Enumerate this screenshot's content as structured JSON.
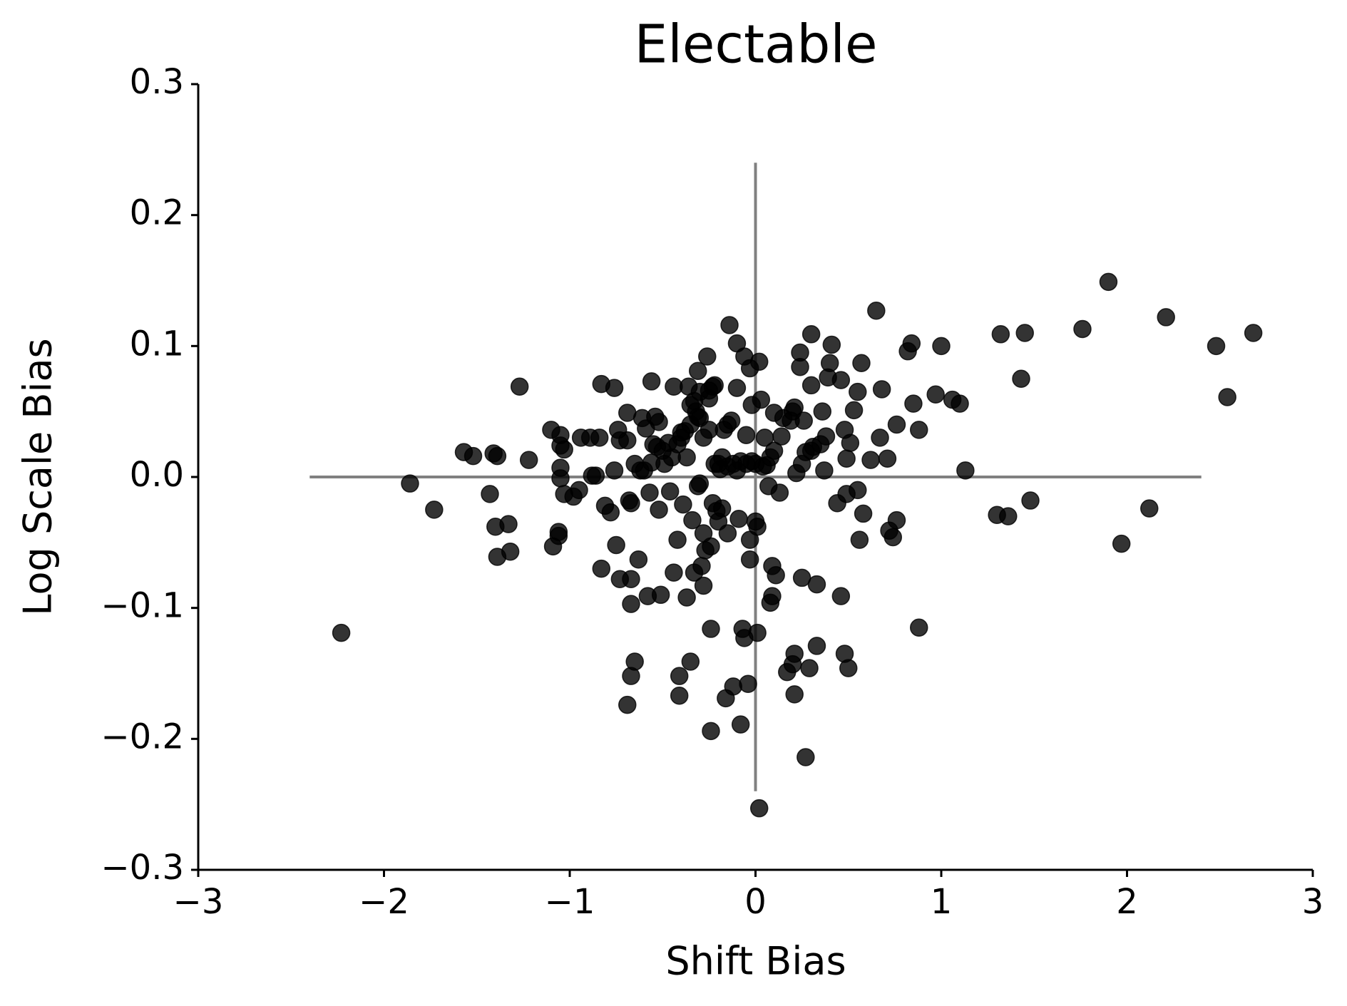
{
  "chart_data": {
    "type": "scatter",
    "title": "Electable",
    "x_label": "Shift Bias",
    "y_label": "Log Scale Bias",
    "color": "#000000",
    "opacity": 0.8,
    "xlim": [
      -3,
      3
    ],
    "ylim": [
      -0.3,
      0.3
    ],
    "xticks": [
      {
        "value": -3,
        "label": "−3"
      },
      {
        "value": -2,
        "label": "−2"
      },
      {
        "value": -1,
        "label": "−1"
      },
      0,
      1,
      2,
      3
    ],
    "yticks": [
      {
        "value": -0.3,
        "label": "−0.3"
      },
      {
        "value": -0.2,
        "label": "−0.2"
      },
      {
        "value": -0.1,
        "label": "−0.1"
      },
      {
        "value": 0,
        "label": "0.0"
      },
      0.1,
      0.2,
      0.3
    ],
    "hline": {
      "y": 0,
      "xmin": -2.4,
      "xmax": 2.4,
      "color": "#808080"
    },
    "vline": {
      "x": 0,
      "ymin": -0.24,
      "ymax": 0.24,
      "color": "#808080"
    },
    "x": [
      -2.23,
      -1.86,
      -1.73,
      -1.57,
      -1.52,
      -1.43,
      -1.41,
      -1.39,
      -1.4,
      -1.39,
      -1.33,
      -1.32,
      -1.27,
      -1.22,
      -1.1,
      -1.09,
      -1.06,
      -1.06,
      -1.05,
      -1.05,
      -1.05,
      -1.05,
      -1.03,
      -1.03,
      -0.98,
      -0.95,
      -0.94,
      -0.89,
      -0.88,
      -0.86,
      -0.84,
      -0.83,
      -0.83,
      -0.81,
      -0.78,
      -0.76,
      -0.76,
      -0.75,
      -0.74,
      -0.73,
      -0.73,
      -0.69,
      -0.69,
      -0.68,
      -0.67,
      -0.67,
      -0.67,
      -0.67,
      -0.69,
      -0.65,
      -0.63,
      -0.62,
      -0.61,
      -0.59,
      -0.58,
      -0.57,
      -0.56,
      -0.56,
      -0.54,
      -0.53,
      -0.52,
      -0.52,
      -0.51,
      -0.49,
      -0.47,
      -0.46,
      -0.44,
      -0.44,
      -0.42,
      -0.41,
      -0.41,
      -0.4,
      -0.39,
      -0.37,
      -0.37,
      -0.36,
      -0.35,
      -0.34,
      -0.33,
      -0.33,
      -0.31,
      -0.31,
      -0.31,
      -0.29,
      -0.28,
      -0.28,
      -0.27,
      -0.26,
      -0.25,
      -0.25,
      -0.24,
      -0.24,
      -0.23,
      -0.24,
      -0.23,
      -0.21,
      -0.2,
      -0.19,
      -0.18,
      -0.17,
      -0.16,
      -0.15,
      -0.15,
      -0.14,
      -0.13,
      -0.12,
      -0.1,
      -0.1,
      -0.09,
      -0.08,
      -0.07,
      -0.06,
      -0.06,
      -0.05,
      -0.04,
      -0.03,
      -0.03,
      -0.03,
      -0.02,
      0.0,
      0.01,
      0.01,
      0.02,
      0.02,
      0.03,
      0.04,
      0.06,
      0.07,
      0.08,
      0.09,
      0.09,
      0.1,
      0.11,
      0.13,
      0.14,
      0.17,
      0.19,
      0.2,
      0.21,
      0.21,
      0.21,
      0.22,
      0.24,
      0.24,
      0.25,
      0.27,
      0.26,
      0.27,
      0.29,
      0.3,
      0.3,
      0.31,
      0.33,
      0.33,
      0.36,
      0.37,
      0.38,
      0.39,
      0.4,
      0.41,
      0.44,
      0.46,
      0.46,
      0.48,
      0.48,
      0.49,
      0.49,
      0.5,
      0.51,
      0.53,
      0.55,
      0.55,
      0.56,
      0.57,
      0.58,
      0.62,
      0.65,
      0.67,
      0.68,
      0.71,
      0.72,
      0.74,
      0.76,
      0.76,
      0.82,
      0.84,
      0.85,
      0.88,
      0.88,
      0.97,
      1.0,
      1.06,
      1.1,
      1.13,
      1.3,
      1.32,
      1.36,
      1.43,
      1.45,
      1.48,
      1.76,
      1.9,
      1.97,
      2.12,
      2.21,
      2.48,
      2.54,
      2.68,
      -0.5,
      -0.45,
      -0.42,
      -0.38,
      -0.35,
      -0.32,
      -0.3,
      -0.28,
      -0.25,
      -0.22,
      -0.2,
      -0.18,
      -0.15,
      -0.12,
      -0.1,
      -0.08,
      -0.05,
      -0.02,
      0.0,
      0.05,
      0.08,
      0.1,
      0.15,
      0.2,
      0.25,
      0.3,
      0.35,
      -0.6,
      -0.65,
      -0.55,
      -0.3,
      -0.4,
      -0.35,
      -0.3,
      -0.22
    ],
    "y": [
      -0.119,
      -0.005,
      -0.025,
      0.019,
      0.016,
      -0.013,
      0.018,
      0.016,
      -0.038,
      -0.061,
      -0.036,
      -0.057,
      0.069,
      0.013,
      0.036,
      -0.053,
      -0.042,
      -0.045,
      0.024,
      0.032,
      0.007,
      -0.001,
      0.021,
      -0.013,
      -0.015,
      -0.01,
      0.03,
      0.03,
      0.001,
      0.001,
      0.03,
      0.071,
      -0.07,
      -0.022,
      -0.027,
      0.068,
      0.005,
      -0.052,
      0.036,
      -0.078,
      0.028,
      0.049,
      0.028,
      -0.018,
      -0.02,
      -0.097,
      -0.078,
      -0.152,
      -0.174,
      -0.141,
      -0.063,
      0.005,
      0.045,
      0.037,
      -0.091,
      -0.012,
      0.073,
      0.011,
      0.046,
      0.023,
      0.042,
      -0.025,
      -0.09,
      0.01,
      0.026,
      -0.011,
      0.069,
      -0.073,
      -0.048,
      -0.152,
      -0.167,
      0.034,
      -0.021,
      -0.092,
      0.015,
      0.069,
      -0.141,
      -0.033,
      -0.073,
      0.058,
      0.081,
      -0.007,
      0.046,
      -0.068,
      -0.043,
      -0.083,
      -0.056,
      0.092,
      0.036,
      0.066,
      -0.116,
      -0.053,
      0.069,
      -0.194,
      -0.02,
      -0.026,
      -0.034,
      0.006,
      -0.024,
      0.036,
      -0.169,
      -0.043,
      0.008,
      0.116,
      0.043,
      -0.16,
      0.102,
      0.068,
      -0.032,
      -0.189,
      -0.116,
      -0.123,
      0.092,
      0.032,
      -0.158,
      0.083,
      -0.063,
      -0.048,
      0.055,
      -0.034,
      -0.119,
      -0.038,
      -0.253,
      0.088,
      0.059,
      0.008,
      0.009,
      -0.007,
      -0.096,
      -0.068,
      -0.091,
      0.049,
      -0.075,
      -0.012,
      0.031,
      -0.149,
      0.043,
      -0.143,
      0.053,
      -0.135,
      -0.166,
      0.003,
      0.084,
      0.095,
      -0.077,
      -0.214,
      0.043,
      0.019,
      -0.146,
      0.07,
      0.109,
      0.023,
      -0.082,
      -0.129,
      0.05,
      0.005,
      0.031,
      0.076,
      0.087,
      0.101,
      -0.02,
      -0.091,
      0.074,
      0.036,
      -0.135,
      0.014,
      -0.013,
      -0.146,
      0.026,
      0.051,
      0.065,
      -0.01,
      -0.048,
      0.087,
      -0.028,
      0.013,
      0.127,
      0.03,
      0.067,
      0.014,
      -0.041,
      -0.046,
      -0.033,
      0.04,
      0.096,
      0.102,
      0.056,
      0.036,
      -0.115,
      0.063,
      0.1,
      0.059,
      0.056,
      0.005,
      -0.029,
      0.109,
      -0.03,
      0.075,
      0.11,
      -0.018,
      0.113,
      0.149,
      -0.051,
      -0.024,
      0.122,
      0.1,
      0.061,
      0.11,
      0.02,
      0.015,
      0.025,
      0.035,
      0.04,
      0.05,
      0.045,
      0.03,
      0.06,
      0.07,
      0.01,
      0.015,
      0.04,
      0.01,
      0.005,
      0.012,
      0.01,
      0.012,
      0.01,
      0.03,
      0.015,
      0.02,
      0.045,
      0.05,
      0.01,
      0.02,
      0.025,
      0.005,
      0.01,
      0.025,
      -0.005,
      0.03,
      0.055,
      0.065,
      0.01
    ]
  }
}
